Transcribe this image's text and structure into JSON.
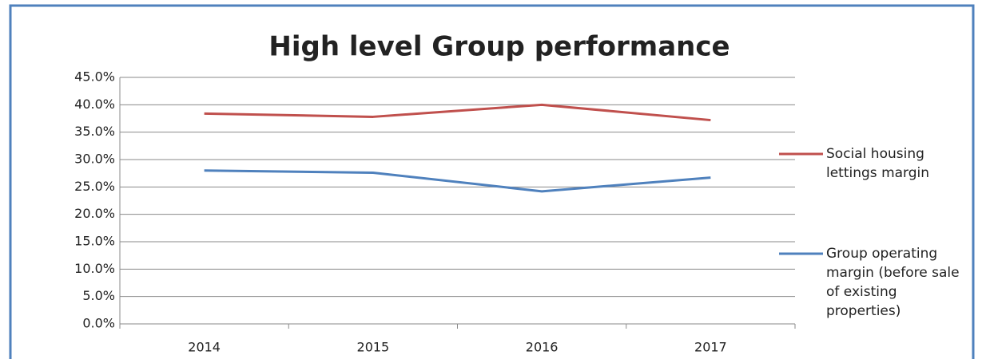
{
  "chart_data": {
    "type": "line",
    "title": "High level Group performance",
    "categories": [
      "2014",
      "2015",
      "2016",
      "2017"
    ],
    "series": [
      {
        "name": "Social housing lettings margin",
        "color": "#c0504d",
        "values": [
          38.4,
          37.8,
          40.0,
          37.2
        ]
      },
      {
        "name": "Group operating margin (before sale of existing properties)",
        "color": "#4f81bd",
        "values": [
          28.0,
          27.6,
          24.2,
          26.7
        ]
      }
    ],
    "ylim": [
      0,
      45
    ],
    "yticks": [
      {
        "value": 0,
        "label": "0.0%"
      },
      {
        "value": 5,
        "label": "5.0%"
      },
      {
        "value": 10,
        "label": "10.0%"
      },
      {
        "value": 15,
        "label": "15.0%"
      },
      {
        "value": 20,
        "label": "20.0%"
      },
      {
        "value": 25,
        "label": "25.0%"
      },
      {
        "value": 30,
        "label": "30.0%"
      },
      {
        "value": 35,
        "label": "35.0%"
      },
      {
        "value": 40,
        "label": "40.0%"
      },
      {
        "value": 45,
        "label": "45.0%"
      }
    ],
    "grid": true,
    "legend": "right"
  }
}
